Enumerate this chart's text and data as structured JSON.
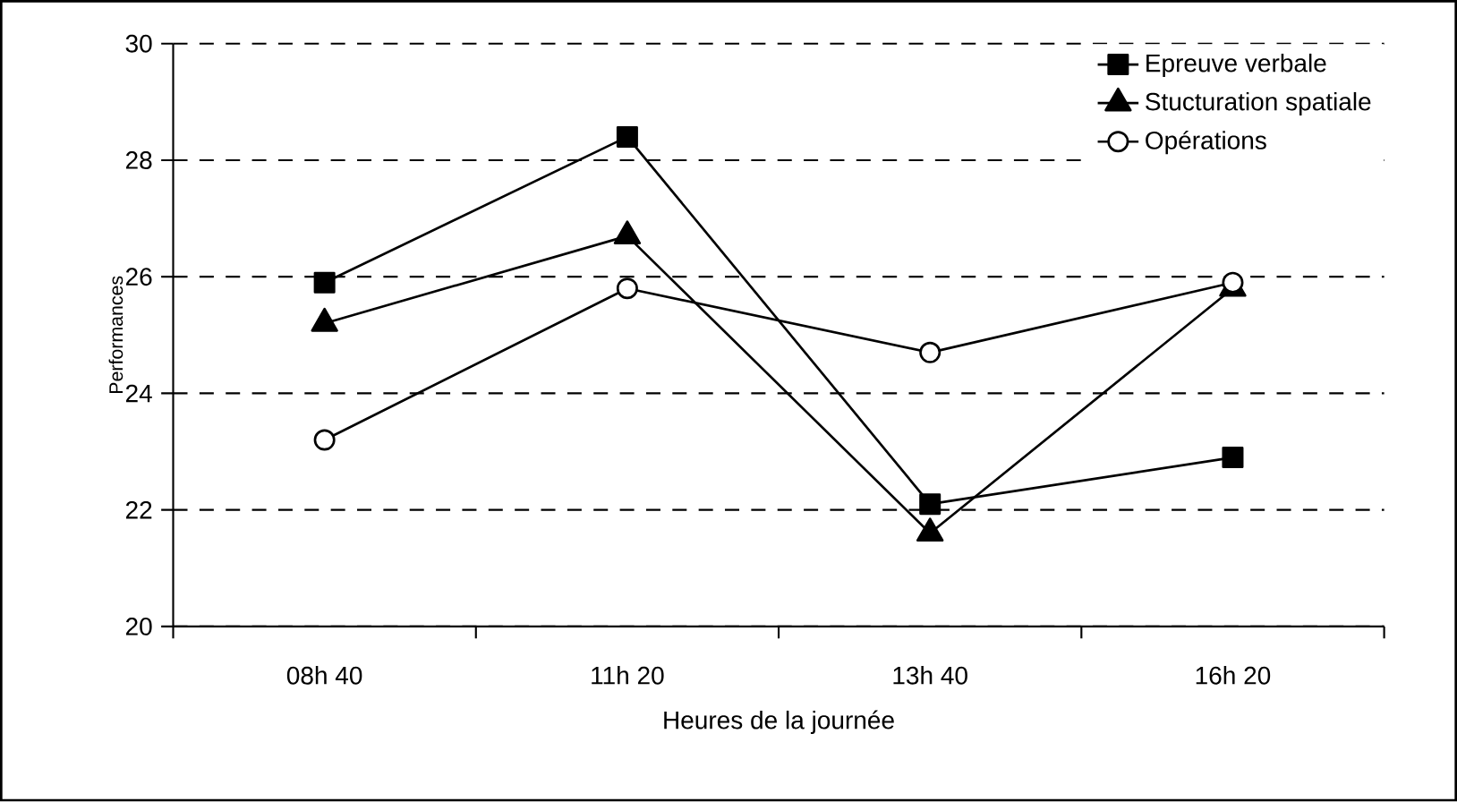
{
  "chart_data": {
    "type": "line",
    "xlabel": "Heures de la journée",
    "ylabel": "Performances",
    "categories": [
      "08h 40",
      "11h 20",
      "13h 40",
      "16h 20"
    ],
    "series": [
      {
        "name": "Epreuve verbale",
        "color": "#000000",
        "marker": "square",
        "values": [
          25.9,
          28.4,
          22.1,
          22.9
        ]
      },
      {
        "name": "Stucturation spatiale",
        "color": "#000000",
        "marker": "triangle",
        "values": [
          25.2,
          26.7,
          21.6,
          25.8
        ]
      },
      {
        "name": "Opérations",
        "color": "#000000",
        "marker": "circle",
        "values": [
          23.2,
          25.8,
          24.7,
          25.9
        ]
      }
    ],
    "ylim": [
      20,
      30
    ],
    "yticks": [
      20,
      22,
      24,
      26,
      28,
      30
    ],
    "grid": "y",
    "legend": "top right",
    "line_style": "solid"
  }
}
